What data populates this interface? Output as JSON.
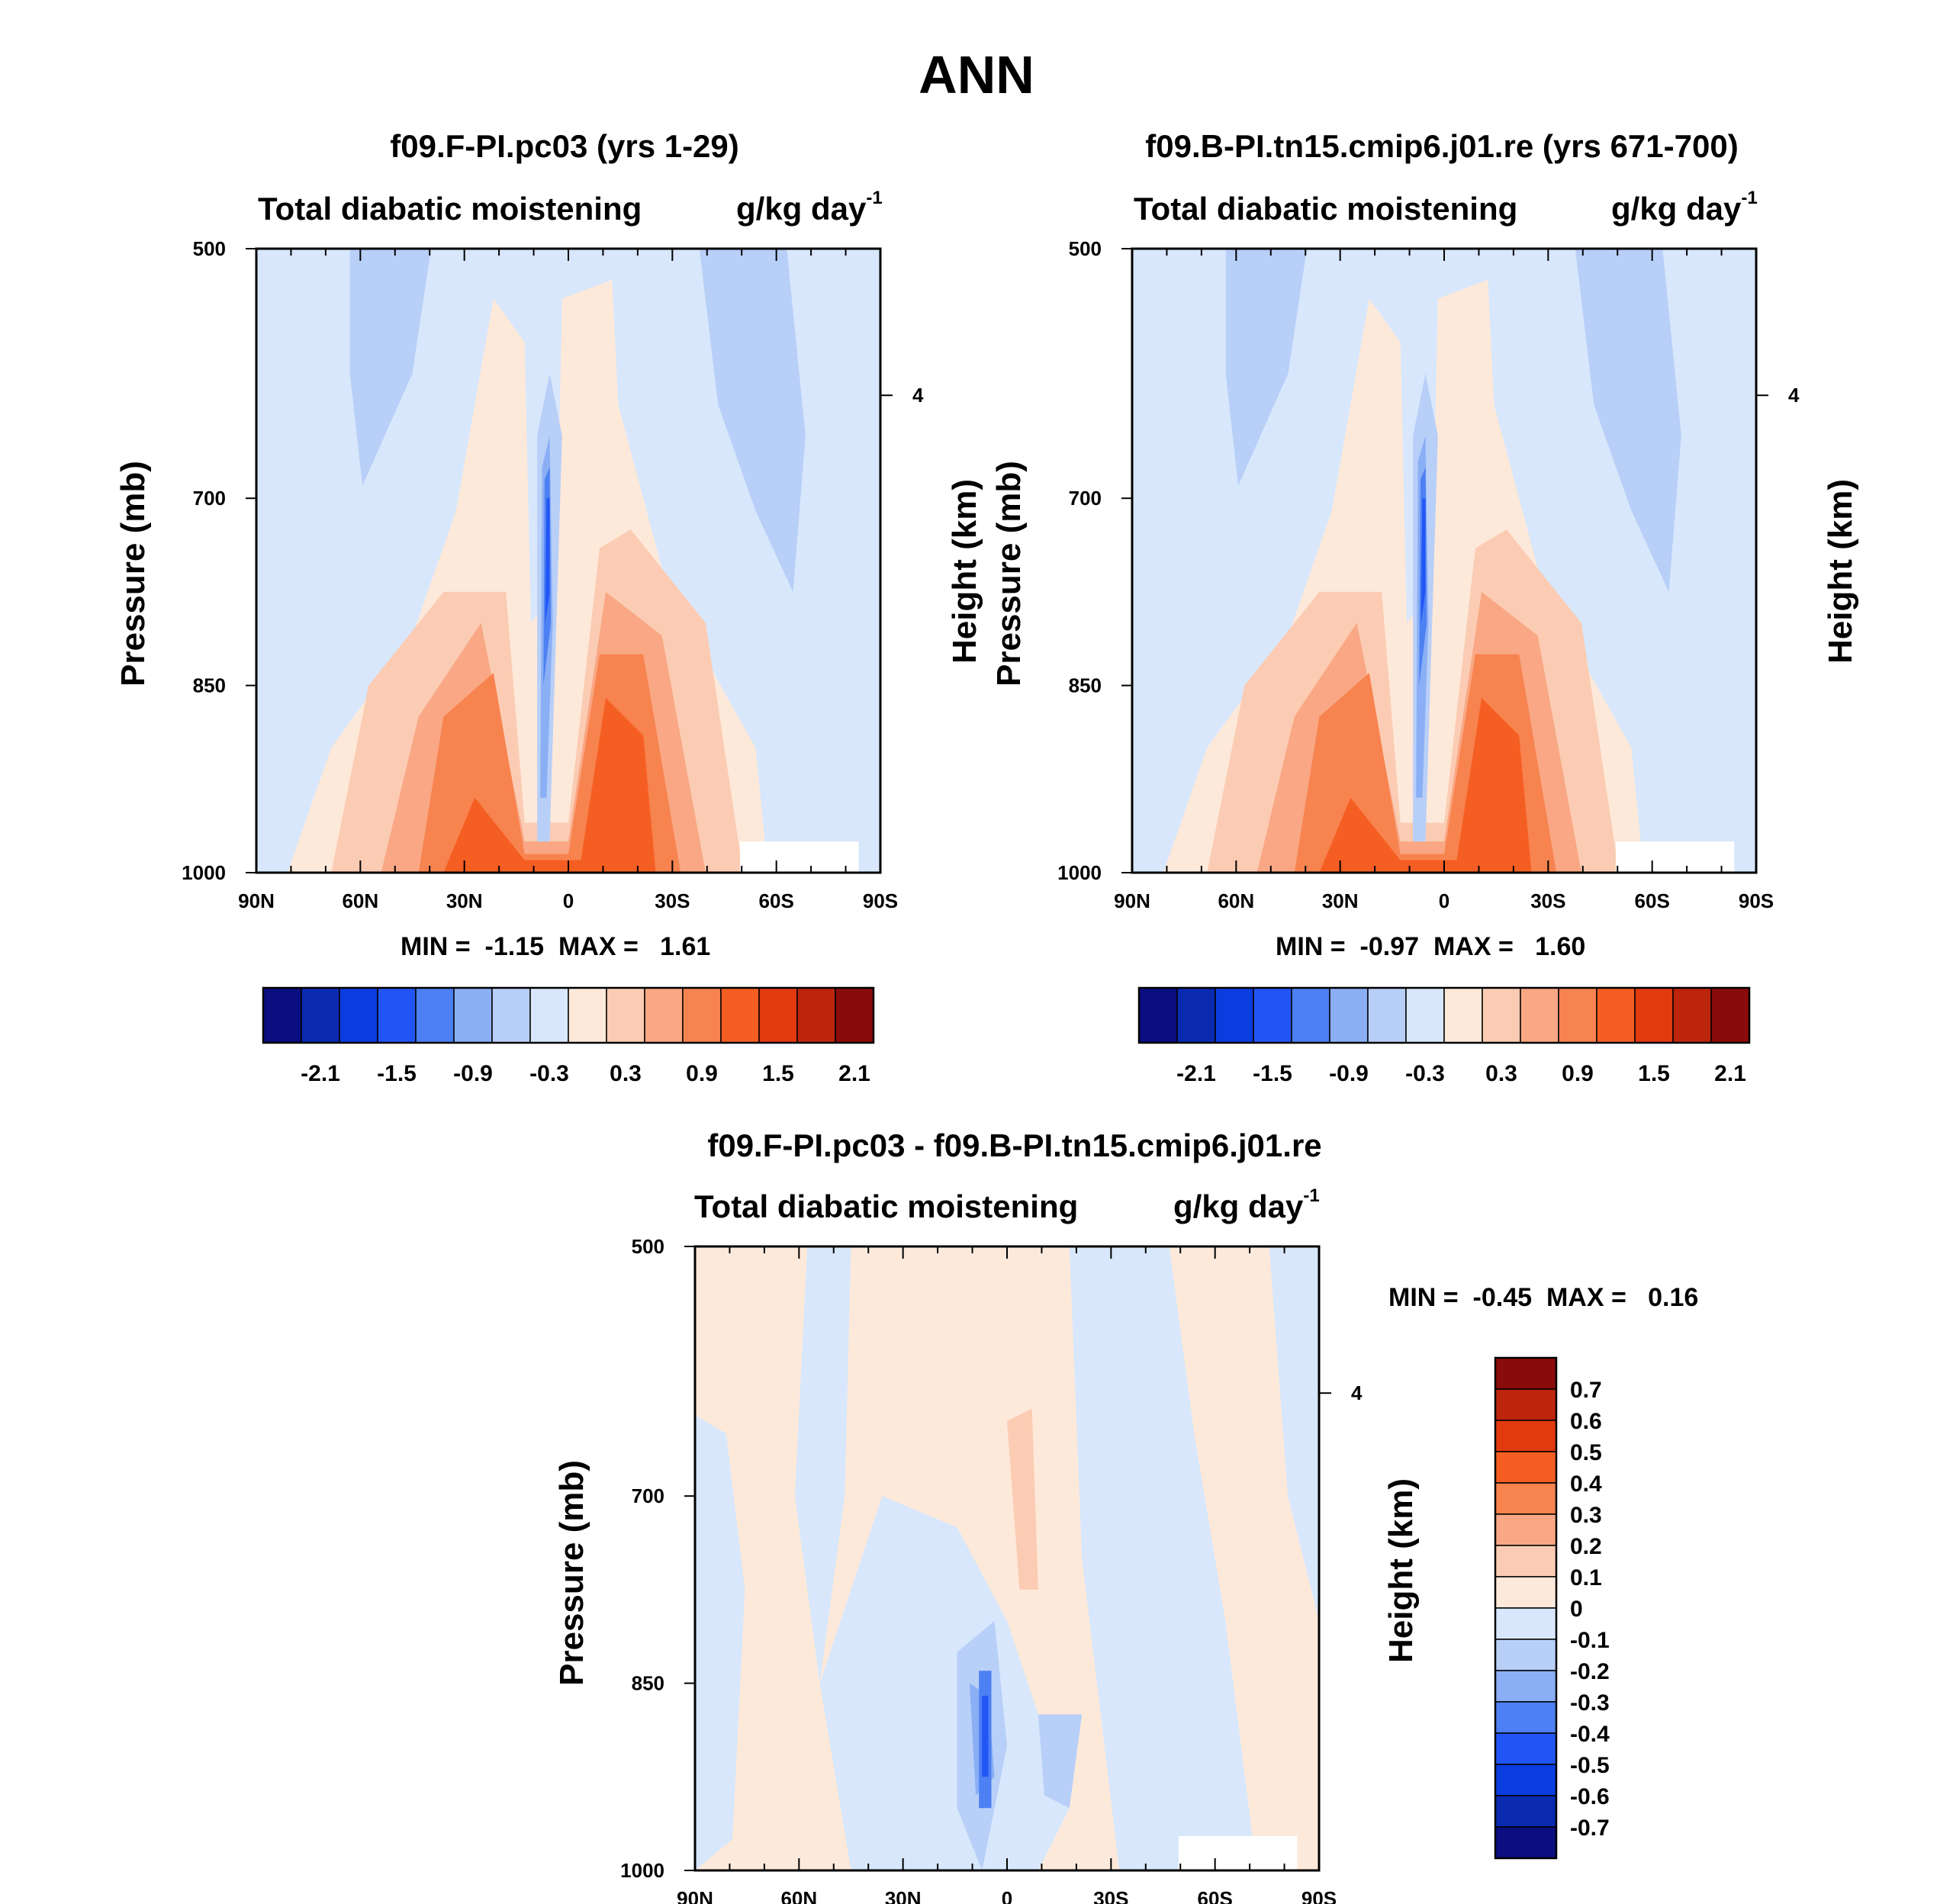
{
  "page_title": "ANN",
  "colors": {
    "neg7": "#0a0e80",
    "neg6": "#0a2ab0",
    "neg5": "#0a3de0",
    "neg4": "#2255f5",
    "neg3": "#4d80f2",
    "neg2": "#8aaff5",
    "neg1": "#b8cff8",
    "neg0": "#d8e7fb",
    "pos0": "#fde9da",
    "pos1": "#fbccb3",
    "pos2": "#f9a784",
    "pos3": "#f7834f",
    "pos4": "#f55e22",
    "pos5": "#e23a0f",
    "pos6": "#bd250c",
    "pos7": "#8a0b0b"
  },
  "chart_data": [
    {
      "type": "contour",
      "id": "model",
      "title": "f09.F-PI.pc03 (yrs 1-29)",
      "left_string": "Total diabatic moistening",
      "right_string": "g/kg day",
      "right_string_exp": "-1",
      "ylabel": "Pressure (mb)",
      "ylabel_right": "Height (km)",
      "x_ticks": [
        "90N",
        "60N",
        "30N",
        "0",
        "30S",
        "60S",
        "90S"
      ],
      "y_ticks": [
        "500",
        "700",
        "850",
        "1000"
      ],
      "height_tick": "4",
      "min_label": "MIN =",
      "min_value": "-1.15",
      "max_label": "MAX =",
      "max_value": "1.61",
      "colorbar_labels": [
        "-2.1",
        "-1.5",
        "-0.9",
        "-0.3",
        "0.3",
        "0.9",
        "1.5",
        "2.1"
      ]
    },
    {
      "type": "contour",
      "id": "obs",
      "title": "f09.B-PI.tn15.cmip6.j01.re (yrs 671-700)",
      "left_string": "Total diabatic moistening",
      "right_string": "g/kg day",
      "right_string_exp": "-1",
      "ylabel": "Pressure (mb)",
      "ylabel_right": "Height (km)",
      "x_ticks": [
        "90N",
        "60N",
        "30N",
        "0",
        "30S",
        "60S",
        "90S"
      ],
      "y_ticks": [
        "500",
        "700",
        "850",
        "1000"
      ],
      "height_tick": "4",
      "min_label": "MIN =",
      "min_value": "-0.97",
      "max_label": "MAX =",
      "max_value": "1.60",
      "colorbar_labels": [
        "-2.1",
        "-1.5",
        "-0.9",
        "-0.3",
        "0.3",
        "0.9",
        "1.5",
        "2.1"
      ]
    },
    {
      "type": "contour",
      "id": "diff",
      "title": "f09.F-PI.pc03 - f09.B-PI.tn15.cmip6.j01.re",
      "left_string": "Total diabatic moistening",
      "right_string": "g/kg day",
      "right_string_exp": "-1",
      "ylabel": "Pressure (mb)",
      "ylabel_right": "Height (km)",
      "x_ticks": [
        "90N",
        "60N",
        "30N",
        "0",
        "30S",
        "60S",
        "90S"
      ],
      "y_ticks": [
        "500",
        "700",
        "850",
        "1000"
      ],
      "height_tick": "4",
      "min_label": "MIN =",
      "min_value": "-0.45",
      "max_label": "MAX =",
      "max_value": "0.16",
      "colorbar_labels": [
        "0.7",
        "0.6",
        "0.5",
        "0.4",
        "0.3",
        "0.2",
        "0.1",
        "0",
        "-0.1",
        "-0.2",
        "-0.3",
        "-0.4",
        "-0.5",
        "-0.6",
        "-0.7"
      ]
    }
  ]
}
